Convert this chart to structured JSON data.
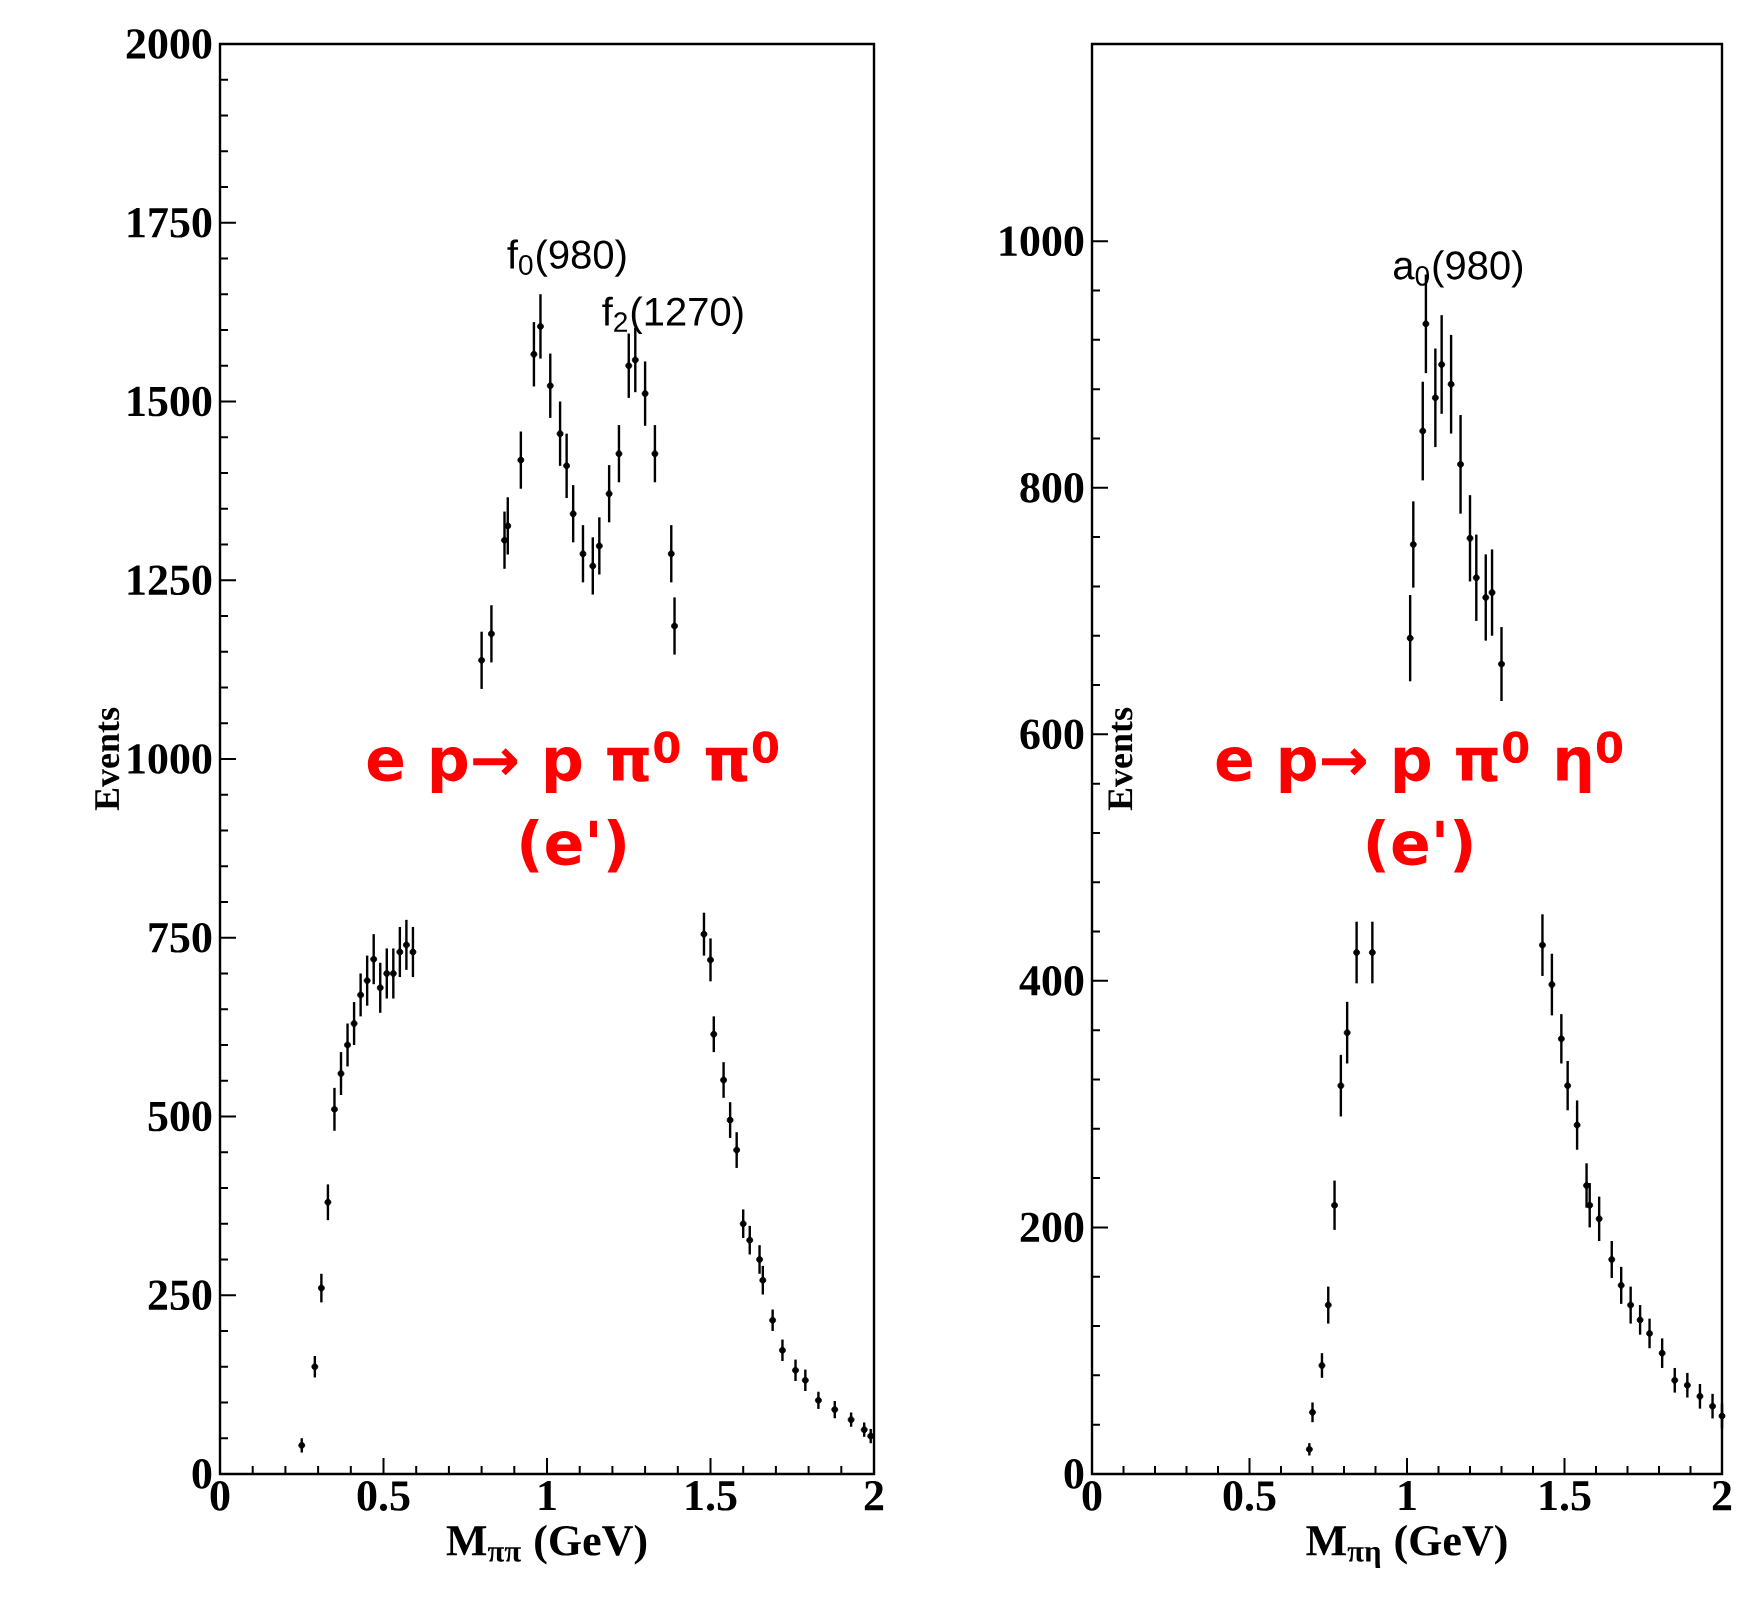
{
  "chart_data": [
    {
      "type": "scatter",
      "xlabel": "M$_{ππ}$ (GeV)",
      "ylabel": "Events",
      "xlim": [
        0,
        2
      ],
      "ylim": [
        0,
        2000
      ],
      "xticks": [
        0,
        0.5,
        1,
        1.5,
        2
      ],
      "yticks": [
        0,
        250,
        500,
        750,
        1000,
        1250,
        1500,
        1750,
        2000
      ],
      "annotations": [
        {
          "text": "f$_{0}$(980)",
          "x": 0.98,
          "y": 1660
        },
        {
          "text": "f$_{2}$(1270)",
          "x": 1.27,
          "y": 1580
        },
        "e p→ p π$^{0}$ π$^{0}$",
        "(e')"
      ],
      "series": [
        {
          "color": "#000000",
          "x": [
            0.25,
            0.29,
            0.31,
            0.33,
            0.35,
            0.37,
            0.39,
            0.41,
            0.43,
            0.45,
            0.47,
            0.49,
            0.51,
            0.53,
            0.55,
            0.57,
            0.59,
            0.8,
            0.83,
            0.87,
            0.88,
            0.92,
            0.96,
            0.98,
            1.01,
            1.04,
            1.06,
            1.08,
            1.11,
            1.14,
            1.16,
            1.19,
            1.22,
            1.25,
            1.27,
            1.3,
            1.33,
            1.38,
            1.39,
            1.48,
            1.5,
            1.51,
            1.54,
            1.56,
            1.58,
            1.6,
            1.62,
            1.65,
            1.66,
            1.69,
            1.72,
            1.76,
            1.79,
            1.83,
            1.88,
            1.93,
            1.97,
            1.99
          ],
          "values": [
            40,
            150,
            260,
            380,
            510,
            560,
            600,
            630,
            670,
            690,
            720,
            680,
            700,
            700,
            730,
            740,
            730,
            1138,
            1175,
            1306,
            1326,
            1418,
            1566,
            1605,
            1522,
            1455,
            1410,
            1343,
            1287,
            1270,
            1298,
            1371,
            1427,
            1550,
            1558,
            1511,
            1427,
            1287,
            1186,
            755,
            719,
            615,
            551,
            495,
            453,
            350,
            327,
            300,
            271,
            215,
            173,
            145,
            131,
            103,
            90,
            76,
            62,
            53
          ],
          "errors": [
            10,
            15,
            20,
            25,
            30,
            30,
            30,
            30,
            30,
            35,
            35,
            35,
            35,
            35,
            35,
            35,
            35,
            40,
            40,
            40,
            40,
            40,
            45,
            45,
            45,
            45,
            45,
            40,
            40,
            40,
            40,
            40,
            40,
            45,
            45,
            45,
            40,
            40,
            40,
            30,
            30,
            25,
            25,
            25,
            25,
            20,
            20,
            20,
            20,
            15,
            15,
            15,
            15,
            12,
            12,
            10,
            10,
            10
          ]
        }
      ]
    },
    {
      "type": "scatter",
      "xlabel": "M$_{πη}$ (GeV)",
      "ylabel": "Events",
      "xlim": [
        0,
        2
      ],
      "ylim": [
        0,
        1160
      ],
      "xticks": [
        0,
        0.5,
        1,
        1.5,
        2
      ],
      "yticks": [
        0,
        200,
        400,
        600,
        800,
        1000
      ],
      "annotations": [
        {
          "text": "a$_{0}$(980)",
          "x": 1.06,
          "y": 954
        },
        "e p→ p π$^{0}$ η$^{0}$",
        "(e')"
      ],
      "series": [
        {
          "color": "#000000",
          "x": [
            0.69,
            0.7,
            0.73,
            0.75,
            0.77,
            0.79,
            0.81,
            0.84,
            0.89,
            1.01,
            1.02,
            1.05,
            1.06,
            1.09,
            1.11,
            1.14,
            1.17,
            1.2,
            1.22,
            1.25,
            1.27,
            1.3,
            1.43,
            1.46,
            1.49,
            1.51,
            1.54,
            1.57,
            1.58,
            1.61,
            1.65,
            1.68,
            1.71,
            1.74,
            1.77,
            1.81,
            1.85,
            1.89,
            1.93,
            1.97,
            2.0
          ],
          "values": [
            20,
            50,
            88,
            137,
            218,
            315,
            358,
            423,
            423,
            678,
            754,
            846,
            933,
            873,
            900,
            884,
            819,
            759,
            727,
            711,
            715,
            657,
            429,
            397,
            353,
            315,
            283,
            234,
            218,
            207,
            174,
            153,
            137,
            125,
            114,
            98,
            76,
            72,
            63,
            55,
            47
          ],
          "errors": [
            5,
            8,
            10,
            15,
            20,
            25,
            25,
            25,
            25,
            35,
            35,
            40,
            40,
            40,
            40,
            40,
            40,
            35,
            35,
            35,
            35,
            30,
            25,
            25,
            20,
            20,
            20,
            18,
            18,
            18,
            15,
            15,
            15,
            12,
            12,
            12,
            10,
            10,
            10,
            10,
            10
          ]
        }
      ]
    }
  ]
}
